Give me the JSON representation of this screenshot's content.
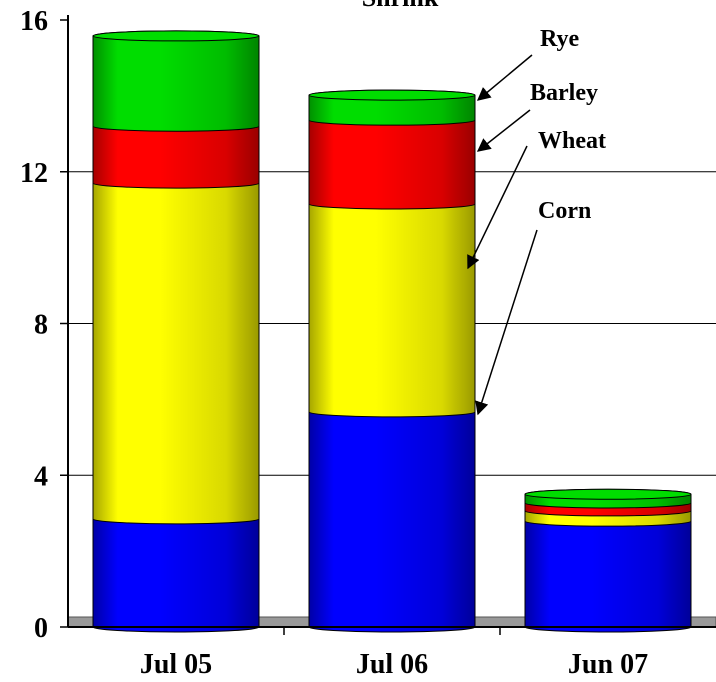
{
  "chart_data": {
    "type": "stacked-cylinder",
    "title": "Shrink",
    "categories": [
      "Jul 05",
      "Jul 06",
      "Jun 07"
    ],
    "series": [
      {
        "name": "Corn",
        "color": "#0000ff",
        "values": [
          2.85,
          5.67,
          2.79
        ]
      },
      {
        "name": "Wheat",
        "color": "#ffff00",
        "values": [
          8.85,
          5.48,
          0.27
        ]
      },
      {
        "name": "Barley",
        "color": "#ff0000",
        "values": [
          1.5,
          2.21,
          0.21
        ]
      },
      {
        "name": "Rye",
        "color": "#00dd00",
        "values": [
          2.38,
          0.66,
          0.23
        ]
      }
    ],
    "ylim": [
      0,
      16
    ],
    "yticks": [
      0,
      4,
      8,
      12,
      16
    ],
    "grid": true
  }
}
